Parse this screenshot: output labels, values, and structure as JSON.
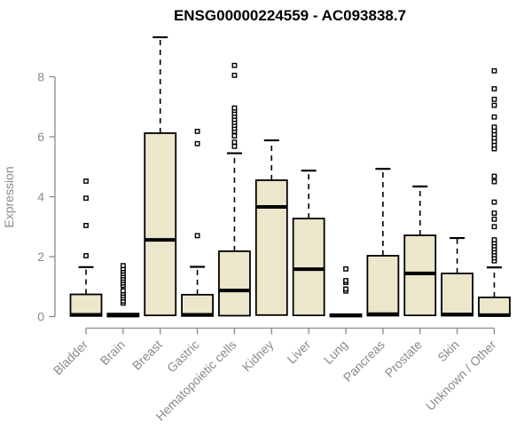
{
  "chart_data": {
    "type": "boxplot",
    "title": "ENSG00000224559 - AC093838.7",
    "ylabel": "Expression",
    "xlabel": "",
    "ylim": [
      0,
      8
    ],
    "yticks": [
      0,
      2,
      4,
      6,
      8
    ],
    "grid": false,
    "legend_position": "none",
    "colors": {
      "box_fill": "#ECE6CB",
      "box_stroke": "#000000",
      "median": "#000000",
      "whisker": "#000000",
      "outlier_stroke": "#000000",
      "axis": "#8A8A8A",
      "title": "#000000",
      "background": "#FFFFFF"
    },
    "categories": [
      "Bladder",
      "Brain",
      "Breast",
      "Gastric",
      "Hematopoietic cells",
      "Kidney",
      "Liver",
      "Lung",
      "Pancreas",
      "Prostate",
      "Skin",
      "Unknown / Other"
    ],
    "boxes": [
      {
        "label": "Bladder",
        "q1": 0.02,
        "median": 0.06,
        "q3": 0.74,
        "whisker_high": 1.65,
        "outliers": [
          2.03,
          3.04,
          3.95,
          4.52
        ]
      },
      {
        "label": "Brain",
        "q1": 0.0,
        "median": 0.05,
        "q3": 0.1,
        "whisker_high": 0.1,
        "outliers": [
          0.45,
          0.52,
          0.62,
          0.7,
          0.78,
          0.86,
          1.04,
          1.12,
          1.2,
          1.28,
          1.36,
          1.44,
          1.52,
          1.6,
          1.7
        ]
      },
      {
        "label": "Breast",
        "q1": 0.04,
        "median": 2.56,
        "q3": 6.12,
        "whisker_high": 9.32,
        "outliers": []
      },
      {
        "label": "Gastric",
        "q1": 0.02,
        "median": 0.06,
        "q3": 0.73,
        "whisker_high": 1.66,
        "outliers": [
          2.7,
          5.77,
          6.18
        ]
      },
      {
        "label": "Hematopoietic cells",
        "q1": 0.03,
        "median": 0.87,
        "q3": 2.18,
        "whisker_high": 5.45,
        "outliers": [
          5.68,
          5.82,
          6.03,
          6.18,
          6.28,
          6.38,
          6.48,
          6.58,
          6.68,
          6.78,
          6.88,
          6.96,
          8.05,
          8.38
        ]
      },
      {
        "label": "Kidney",
        "q1": 0.05,
        "median": 3.66,
        "q3": 4.55,
        "whisker_high": 5.88,
        "outliers": []
      },
      {
        "label": "Liver",
        "q1": 0.04,
        "median": 1.58,
        "q3": 3.27,
        "whisker_high": 4.87,
        "outliers": []
      },
      {
        "label": "Lung",
        "q1": 0.0,
        "median": 0.04,
        "q3": 0.08,
        "whisker_high": 0.08,
        "outliers": [
          0.85,
          0.92,
          1.14,
          1.2,
          1.59
        ]
      },
      {
        "label": "Pancreas",
        "q1": 0.03,
        "median": 0.08,
        "q3": 2.03,
        "whisker_high": 4.93,
        "outliers": []
      },
      {
        "label": "Prostate",
        "q1": 0.04,
        "median": 1.44,
        "q3": 2.71,
        "whisker_high": 4.34,
        "outliers": []
      },
      {
        "label": "Skin",
        "q1": 0.03,
        "median": 0.07,
        "q3": 1.44,
        "whisker_high": 2.62,
        "outliers": []
      },
      {
        "label": "Unknown / Other",
        "q1": 0.02,
        "median": 0.05,
        "q3": 0.64,
        "whisker_high": 1.64,
        "outliers": [
          1.86,
          1.96,
          2.06,
          2.16,
          2.26,
          2.36,
          2.46,
          2.56,
          3.0,
          3.25,
          3.45,
          3.82,
          4.5,
          4.68,
          5.6,
          5.72,
          5.84,
          5.96,
          6.08,
          6.2,
          6.32,
          6.66,
          7.05,
          7.25,
          7.6,
          8.2
        ]
      }
    ]
  }
}
